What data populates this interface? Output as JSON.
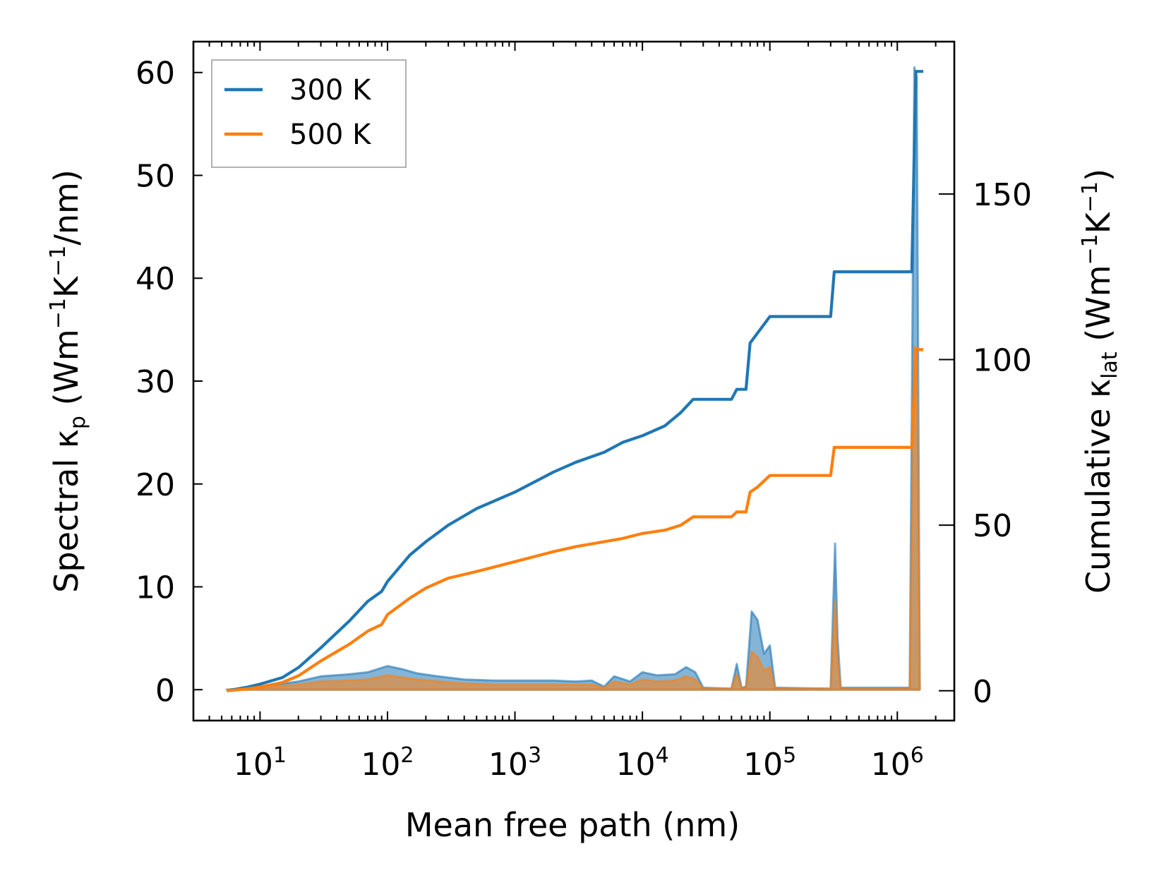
{
  "chart_data": {
    "type": "line",
    "title": "",
    "xlabel": "Mean free path (nm)",
    "ylabel_left": "Spectral κ",
    "ylabel_left_sub": "p",
    "ylabel_left_units": "(Wm",
    "ylabel_left_units_2": "K",
    "ylabel_left_units_3": "/nm)",
    "ylabel_right": "Cumulative κ",
    "ylabel_right_sub": "lat",
    "ylabel_right_units": "(Wm",
    "ylabel_right_units_2": "K",
    "ylabel_right_units_3": ")",
    "superscript_minus_one": "−1",
    "x_scale": "log",
    "xlim": [
      3.0,
      2800000
    ],
    "ylim_left": [
      -3,
      63
    ],
    "ylim_right": [
      -9.0,
      196.0
    ],
    "x_tick_base": "10",
    "x_ticks": [
      {
        "value": 10,
        "exponent": "1"
      },
      {
        "value": 100,
        "exponent": "2"
      },
      {
        "value": 1000,
        "exponent": "3"
      },
      {
        "value": 10000,
        "exponent": "4"
      },
      {
        "value": 100000,
        "exponent": "5"
      },
      {
        "value": 1000000,
        "exponent": "6"
      }
    ],
    "y_ticks_left": [
      "0",
      "10",
      "20",
      "30",
      "40",
      "50",
      "60"
    ],
    "y_ticks_right": [
      "0",
      "50",
      "100",
      "150"
    ],
    "legend": {
      "position": "top-left",
      "entries": [
        {
          "label": "300 K",
          "color": "#1f77b4"
        },
        {
          "label": "500 K",
          "color": "#ff7f0e"
        }
      ]
    },
    "series": [
      {
        "name": "300 K",
        "axis": "right",
        "kind": "cumulative",
        "color": "#1f77b4",
        "x": [
          5.5,
          8,
          10,
          15,
          20,
          30,
          50,
          70,
          90,
          100,
          150,
          200,
          300,
          500,
          1000,
          2000,
          3000,
          5000,
          7000,
          10000,
          15000,
          20000,
          25000,
          30000,
          50000,
          55000,
          65000,
          70000,
          80000,
          100000,
          200000,
          300000,
          320000,
          500000,
          1000000,
          1300000,
          1400000,
          1600000
        ],
        "values": [
          0,
          1.1,
          2,
          4,
          7,
          13,
          21,
          27,
          30,
          33,
          41,
          45,
          50,
          55,
          60,
          66,
          69,
          72,
          75,
          77,
          80,
          84,
          88,
          88,
          88,
          91,
          91,
          105,
          108,
          113,
          113,
          113,
          126.5,
          126.5,
          126.5,
          126.5,
          187,
          187
        ]
      },
      {
        "name": "500 K",
        "axis": "right",
        "kind": "cumulative",
        "color": "#ff7f0e",
        "x": [
          5.5,
          8,
          10,
          15,
          20,
          30,
          50,
          70,
          90,
          100,
          150,
          200,
          300,
          500,
          1000,
          2000,
          3000,
          5000,
          7000,
          10000,
          15000,
          20000,
          25000,
          30000,
          50000,
          55000,
          65000,
          70000,
          80000,
          100000,
          200000,
          300000,
          320000,
          500000,
          1000000,
          1300000,
          1400000,
          1600000
        ],
        "values": [
          0,
          0.6,
          1.1,
          2.5,
          4.5,
          9,
          14,
          18,
          20,
          23,
          28,
          31,
          34,
          36,
          39,
          42,
          43.5,
          45,
          46,
          47.5,
          48.5,
          50,
          52.5,
          52.5,
          52.5,
          54,
          54,
          60,
          61.5,
          65,
          65,
          65,
          73.5,
          73.5,
          73.5,
          73.5,
          103,
          103
        ]
      },
      {
        "name": "300 K spectral",
        "axis": "left",
        "kind": "spectral",
        "color": "#1f77b4",
        "x": [
          5.5,
          10,
          20,
          30,
          50,
          70,
          100,
          130,
          170,
          250,
          400,
          700,
          1000,
          2000,
          3000,
          4000,
          5000,
          6000,
          8000,
          10000,
          13000,
          18000,
          22000,
          26000,
          30000,
          50000,
          55000,
          60000,
          65000,
          72000,
          80000,
          90000,
          100000,
          110000,
          300000,
          325000,
          340000,
          360000,
          1250000,
          1360000,
          1420000,
          1500000
        ],
        "values": [
          0,
          0.3,
          0.8,
          1.3,
          1.5,
          1.7,
          2.3,
          2.0,
          1.6,
          1.3,
          1.0,
          0.9,
          0.9,
          0.9,
          0.8,
          0.9,
          0.3,
          1.3,
          0.8,
          1.7,
          1.4,
          1.5,
          2.2,
          1.7,
          0.2,
          0.1,
          2.5,
          0.2,
          0.3,
          7.6,
          6.8,
          3.5,
          4.3,
          0.2,
          0.1,
          14.2,
          5.0,
          0.2,
          0.2,
          60.5,
          59.5,
          0.2
        ]
      },
      {
        "name": "500 K spectral",
        "axis": "left",
        "kind": "spectral",
        "color": "#ff7f0e",
        "x": [
          5.5,
          10,
          20,
          30,
          50,
          70,
          100,
          130,
          170,
          250,
          400,
          700,
          1000,
          2000,
          3000,
          4000,
          5000,
          6000,
          8000,
          10000,
          13000,
          18000,
          22000,
          26000,
          30000,
          50000,
          55000,
          60000,
          65000,
          72000,
          80000,
          90000,
          100000,
          110000,
          300000,
          325000,
          340000,
          360000,
          1250000,
          1360000,
          1420000,
          1500000
        ],
        "values": [
          0,
          0.2,
          0.5,
          0.8,
          0.9,
          1.0,
          1.4,
          1.2,
          1.0,
          0.8,
          0.6,
          0.5,
          0.5,
          0.5,
          0.5,
          0.5,
          0.2,
          0.8,
          0.5,
          1.0,
          0.8,
          0.9,
          1.3,
          1.0,
          0.1,
          0.1,
          1.5,
          0.1,
          0.2,
          3.7,
          3.2,
          1.9,
          2.2,
          0.1,
          0.1,
          8.6,
          3.0,
          0.1,
          0.1,
          33.4,
          33.0,
          0.1
        ]
      }
    ]
  }
}
